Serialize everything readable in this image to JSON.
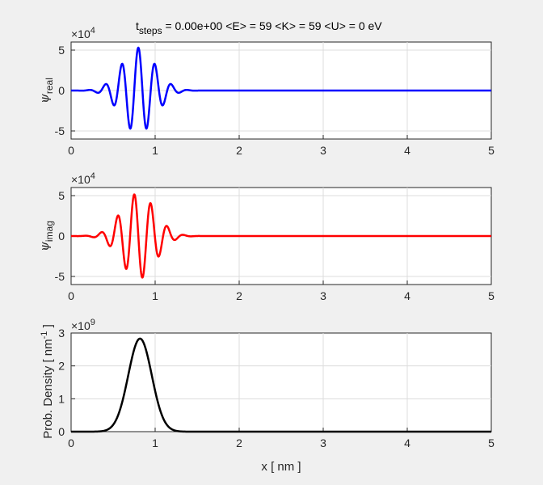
{
  "figure": {
    "title": {
      "t_main": "t",
      "t_sub": "steps",
      "rest": " = 0.00e+00  <E> = 59  <K> = 59  <U> = 0   eV"
    },
    "xlabel": "x  [ nm ]",
    "colors": {
      "real": "#0000ff",
      "imag": "#ff0000",
      "density": "#000000",
      "grid": "#dcdcdc",
      "axes_bg": "#ffffff",
      "figure_bg": "#f0f0f0"
    }
  },
  "chart_data": [
    {
      "type": "line",
      "name": "real",
      "ylabel_main": "ψ",
      "ylabel_sub": "real",
      "exponent_base": "×10",
      "exponent_power": "4",
      "xlim": [
        0,
        5
      ],
      "ylim": [
        -6,
        6
      ],
      "xticks": [
        0,
        1,
        2,
        3,
        4,
        5
      ],
      "yticks": [
        -5,
        0,
        5
      ],
      "grid": true,
      "wavepacket": {
        "center_nm": 0.8,
        "sigma_nm": 0.2,
        "amplitude_e4": 5.3,
        "wavenumber_per_nm": 32,
        "phase_rad": 0.0
      },
      "x_range": [
        0,
        5
      ],
      "ytick_labels": [
        "-5",
        "0",
        "5"
      ],
      "xtick_labels": [
        "0",
        "1",
        "2",
        "3",
        "4",
        "5"
      ]
    },
    {
      "type": "line",
      "name": "imag",
      "ylabel_main": "ψ",
      "ylabel_sub": "imag",
      "exponent_base": "×10",
      "exponent_power": "4",
      "xlim": [
        0,
        5
      ],
      "ylim": [
        -6,
        6
      ],
      "xticks": [
        0,
        1,
        2,
        3,
        4,
        5
      ],
      "yticks": [
        -5,
        0,
        5
      ],
      "grid": true,
      "wavepacket": {
        "center_nm": 0.8,
        "sigma_nm": 0.2,
        "amplitude_e4": 5.3,
        "wavenumber_per_nm": 32,
        "phase_rad": 1.5708
      },
      "x_range": [
        0,
        5
      ],
      "ytick_labels": [
        "-5",
        "0",
        "5"
      ],
      "xtick_labels": [
        "0",
        "1",
        "2",
        "3",
        "4",
        "5"
      ]
    },
    {
      "type": "line",
      "name": "density",
      "ylabel_main": "Prob. Density [ nm",
      "ylabel_sup": "-1",
      "ylabel_end": " ]",
      "exponent_base": "×10",
      "exponent_power": "9",
      "xlim": [
        0,
        5
      ],
      "ylim": [
        0,
        3
      ],
      "xticks": [
        0,
        1,
        2,
        3,
        4,
        5
      ],
      "yticks": [
        0,
        1,
        2,
        3
      ],
      "grid": true,
      "gaussian": {
        "center_nm": 0.82,
        "sigma_nm": 0.14,
        "peak_e9": 2.83
      },
      "x_range": [
        0,
        5
      ],
      "ytick_labels": [
        "0",
        "1",
        "2",
        "3"
      ],
      "xtick_labels": [
        "0",
        "1",
        "2",
        "3",
        "4",
        "5"
      ]
    }
  ]
}
